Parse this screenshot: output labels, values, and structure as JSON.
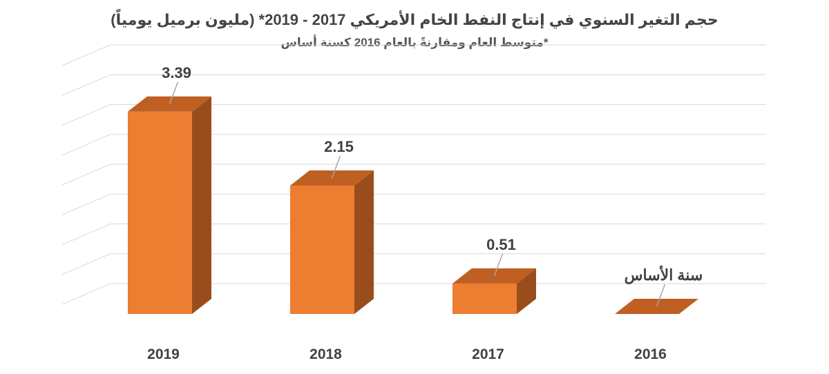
{
  "chart_data": {
    "type": "bar",
    "title": "حجم التغير السنوي في إنتاج النفط الخام الأمريكي 2017 - 2019* (مليون برميل يومياً)",
    "subtitle": "*متوسط العام ومقارنةً بالعام 2016 كسنة أساس",
    "categories": [
      "2019",
      "2018",
      "2017",
      "2016"
    ],
    "values": [
      3.39,
      2.15,
      0.51,
      0
    ],
    "data_labels": [
      "3.39",
      "2.15",
      "0.51",
      "سنة الأساس"
    ],
    "ylim": [
      0,
      4
    ],
    "grid": true,
    "bar_color": "#ED7D31",
    "bar_side_color": "#9A4D1C",
    "bar_top_color": "#BF5F22"
  }
}
